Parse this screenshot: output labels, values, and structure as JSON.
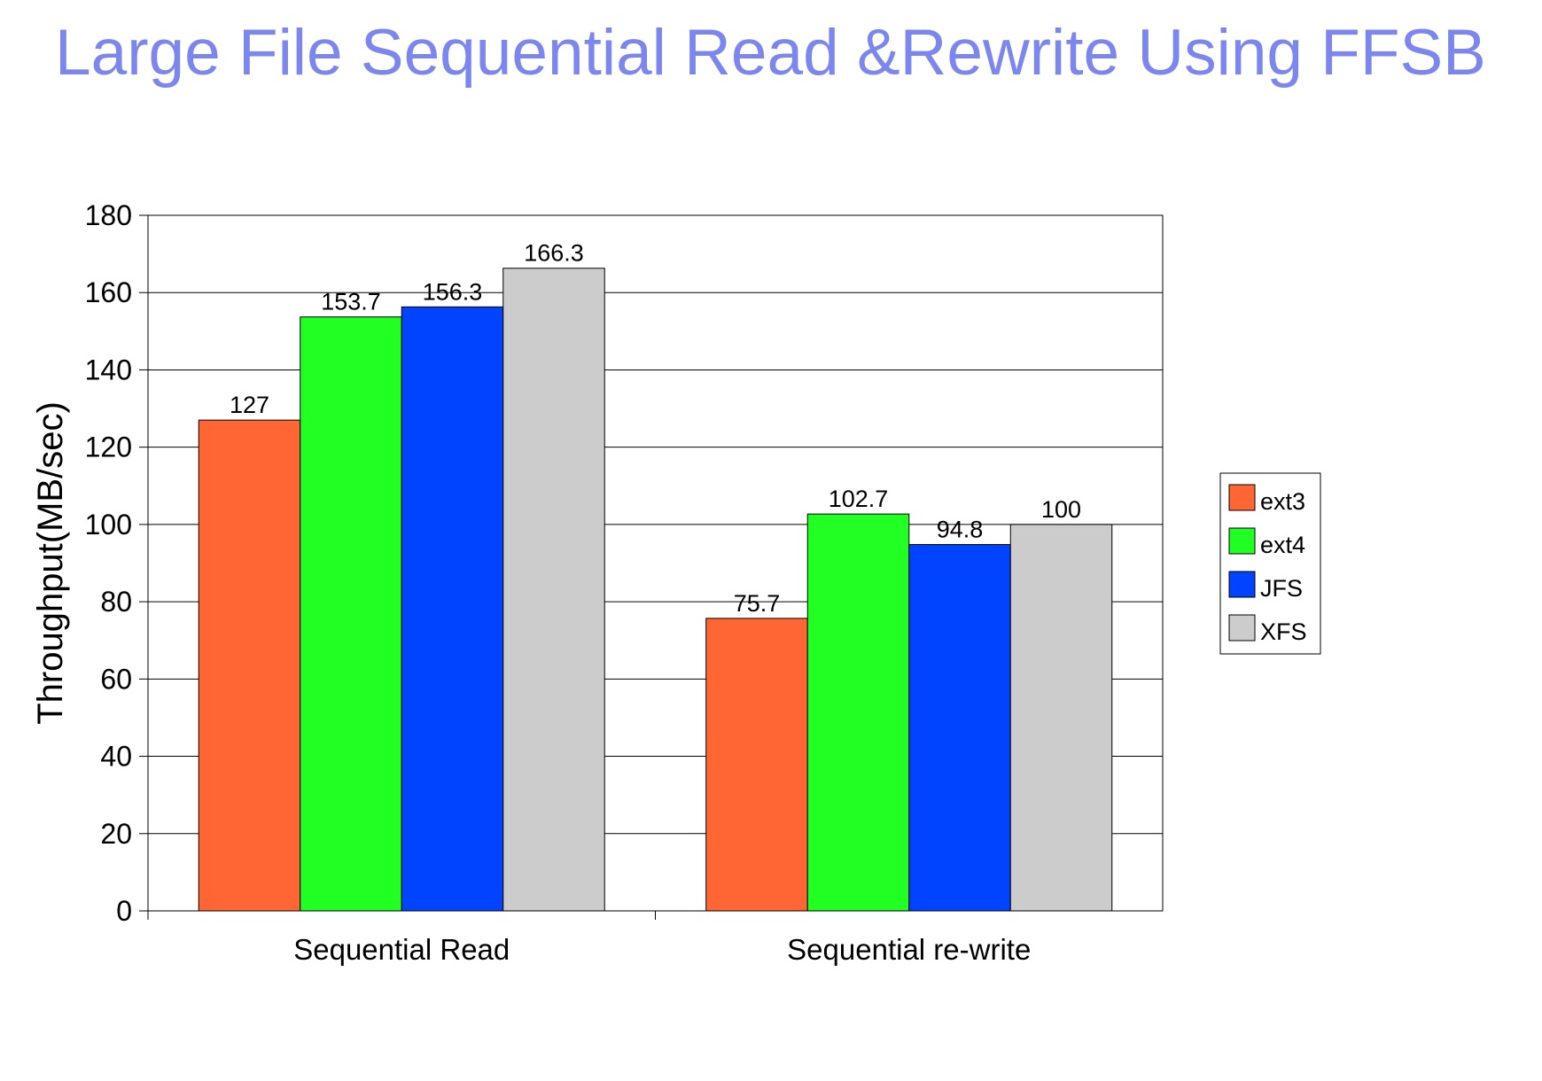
{
  "chart_data": {
    "type": "bar",
    "title": "Large File Sequential Read &Rewrite Using FFSB",
    "ylabel": "Throughput(MB/sec)",
    "xlabel": "",
    "ylim": [
      0,
      180
    ],
    "yticks": [
      0,
      20,
      40,
      60,
      80,
      100,
      120,
      140,
      160,
      180
    ],
    "grid": true,
    "legend_position": "right",
    "categories": [
      "Sequential Read",
      "Sequential re-write"
    ],
    "series": [
      {
        "name": "ext3",
        "color": "#ff6633",
        "values": [
          127,
          75.7
        ],
        "labels": [
          "127",
          "75.7"
        ]
      },
      {
        "name": "ext4",
        "color": "#22ff22",
        "values": [
          153.7,
          102.7
        ],
        "labels": [
          "153.7",
          "102.7"
        ]
      },
      {
        "name": "JFS",
        "color": "#0044ff",
        "values": [
          156.3,
          94.8
        ],
        "labels": [
          "156.3",
          "94.8"
        ]
      },
      {
        "name": "XFS",
        "color": "#cccccc",
        "values": [
          166.3,
          100
        ],
        "labels": [
          "166.3",
          "100"
        ]
      }
    ]
  }
}
